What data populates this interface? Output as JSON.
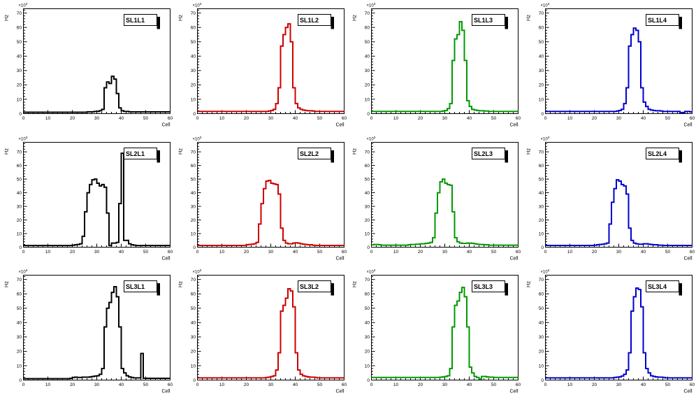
{
  "layout": {
    "rows": 3,
    "cols": 4,
    "background": "#ffffff"
  },
  "chart_data": [
    {
      "type": "bar",
      "style": "step-histogram",
      "title": "SL1L1",
      "color": "#000000",
      "xlabel": "Cell",
      "ylabel": "Hz",
      "exponent": {
        "base": "×10",
        "power": "3"
      },
      "xlim": [
        0,
        60
      ],
      "ylim": [
        0,
        73
      ],
      "xticks": [
        0,
        10,
        20,
        30,
        40,
        50,
        60
      ],
      "yticks": [
        0,
        10,
        20,
        30,
        40,
        50,
        60,
        70
      ],
      "values": [
        1,
        1,
        1,
        1,
        1,
        1,
        1,
        1,
        1,
        1,
        1,
        1,
        1,
        1,
        1,
        1,
        1,
        1,
        1,
        1,
        1,
        1,
        1,
        1,
        1,
        1,
        1.2,
        1.2,
        1.3,
        1.5,
        1.5,
        2,
        3,
        18,
        22,
        21,
        26,
        24,
        14,
        4,
        2,
        1.5,
        1.5,
        1.3,
        1.2,
        1.2,
        1.2,
        1.2,
        1.2,
        1.2,
        1.2,
        1.2,
        1.2,
        1.2,
        1.2,
        1.2,
        1.2,
        1.2,
        1.2,
        1.2
      ]
    },
    {
      "type": "bar",
      "style": "step-histogram",
      "title": "SL1L2",
      "color": "#cc0000",
      "xlabel": "Cell",
      "ylabel": "Hz",
      "exponent": {
        "base": "×10",
        "power": "3"
      },
      "xlim": [
        0,
        60
      ],
      "ylim": [
        0,
        73
      ],
      "xticks": [
        0,
        10,
        20,
        30,
        40,
        50,
        60
      ],
      "yticks": [
        0,
        10,
        20,
        30,
        40,
        50,
        60,
        70
      ],
      "values": [
        1.5,
        1.5,
        1.5,
        1.5,
        1.5,
        1.5,
        1.5,
        1.5,
        1.5,
        1.5,
        1.5,
        1.5,
        1.5,
        1.5,
        1.5,
        1.5,
        1.5,
        1.5,
        1.5,
        1.5,
        1.5,
        1.5,
        1.5,
        1.5,
        1.5,
        1.5,
        1.5,
        1.5,
        1.5,
        1.8,
        2.2,
        3,
        7,
        18,
        47,
        55,
        60,
        62.5,
        50,
        18,
        7,
        4,
        3,
        2.5,
        2.2,
        2,
        2,
        1.8,
        1.5,
        1.5,
        1.5,
        1.5,
        1.5,
        1.5,
        1.5,
        1.5,
        1.5,
        1.5,
        1.5,
        1.5
      ]
    },
    {
      "type": "bar",
      "style": "step-histogram",
      "title": "SL1L3",
      "color": "#009900",
      "xlabel": "Cell",
      "ylabel": "Hz",
      "exponent": {
        "base": "×10",
        "power": "3"
      },
      "xlim": [
        0,
        60
      ],
      "ylim": [
        0,
        73
      ],
      "xticks": [
        0,
        10,
        20,
        30,
        40,
        50,
        60
      ],
      "yticks": [
        0,
        10,
        20,
        30,
        40,
        50,
        60,
        70
      ],
      "values": [
        1.5,
        1.5,
        1.5,
        1.5,
        1.5,
        1.5,
        1.5,
        1.5,
        1.5,
        1.5,
        1.5,
        1.5,
        1.5,
        1.5,
        1.5,
        1.5,
        1.5,
        1.5,
        1.5,
        1.5,
        1.5,
        1.5,
        1.5,
        1.5,
        1.5,
        1.5,
        1.5,
        1.5,
        1.5,
        1.8,
        2.2,
        3.5,
        7,
        37,
        52,
        55,
        64,
        58,
        37,
        9,
        5,
        3,
        2.5,
        2.2,
        2,
        2,
        1.8,
        1.8,
        1.5,
        1.5,
        1.5,
        1.5,
        1.5,
        1.5,
        1.5,
        1.5,
        1.5,
        1.5,
        1.5,
        1.5
      ]
    },
    {
      "type": "bar",
      "style": "step-histogram",
      "title": "SL1L4",
      "color": "#0000cc",
      "xlabel": "Cell",
      "ylabel": "Hz",
      "exponent": {
        "base": "×10",
        "power": "3"
      },
      "xlim": [
        0,
        60
      ],
      "ylim": [
        0,
        73
      ],
      "xticks": [
        0,
        10,
        20,
        30,
        40,
        50,
        60
      ],
      "yticks": [
        0,
        10,
        20,
        30,
        40,
        50,
        60,
        70
      ],
      "values": [
        1.5,
        1.5,
        1.5,
        1.5,
        1.5,
        1.5,
        1.5,
        1.5,
        1.5,
        1.5,
        1.5,
        1.5,
        1.5,
        1.5,
        1.5,
        1.5,
        1.5,
        1.5,
        1.5,
        1.5,
        1.5,
        1.5,
        1.5,
        1.5,
        1.5,
        1.5,
        1.5,
        1.5,
        1.5,
        1.8,
        2.2,
        3,
        7,
        18,
        47,
        55,
        59.5,
        58,
        50,
        18,
        8,
        5,
        3,
        2.5,
        2.2,
        2,
        2,
        1.8,
        1.5,
        1.5,
        1.5,
        1.5,
        1.5,
        1.5,
        1.5,
        0.8,
        0.8,
        1.5,
        1.5,
        1.2
      ]
    },
    {
      "type": "bar",
      "style": "step-histogram",
      "title": "SL2L1",
      "color": "#000000",
      "xlabel": "Cell",
      "ylabel": "Hz",
      "exponent": {
        "base": "×10",
        "power": "3"
      },
      "xlim": [
        0,
        60
      ],
      "ylim": [
        0,
        77
      ],
      "xticks": [
        0,
        10,
        20,
        30,
        40,
        50,
        60
      ],
      "yticks": [
        0,
        10,
        20,
        30,
        40,
        50,
        60,
        70
      ],
      "values": [
        1.2,
        1.2,
        1.2,
        1.2,
        1.2,
        1.2,
        1.2,
        1.2,
        1.2,
        1.2,
        1.2,
        1.2,
        1.2,
        1.2,
        1.2,
        1.2,
        1.2,
        1.2,
        1.2,
        1.2,
        1.5,
        1.8,
        2,
        2.5,
        8,
        26,
        40,
        46,
        49.5,
        50,
        47,
        45,
        46,
        44,
        25,
        1.2,
        3,
        3,
        3.5,
        32,
        69,
        5,
        5,
        2.5,
        1.8,
        1.5,
        1.2,
        1.2,
        1.2,
        1.2,
        1.2,
        1.2,
        1.2,
        1.2,
        1.2,
        1.2,
        1.2,
        1.2,
        1.2,
        1.2
      ]
    },
    {
      "type": "bar",
      "style": "step-histogram",
      "title": "SL2L2",
      "color": "#cc0000",
      "xlabel": "Cell",
      "ylabel": "Hz",
      "exponent": {
        "base": "×10",
        "power": "3"
      },
      "xlim": [
        0,
        60
      ],
      "ylim": [
        0,
        77
      ],
      "xticks": [
        0,
        10,
        20,
        30,
        40,
        50,
        60
      ],
      "yticks": [
        0,
        10,
        20,
        30,
        40,
        50,
        60,
        70
      ],
      "values": [
        1.3,
        1.3,
        1.3,
        1.3,
        1.3,
        1.3,
        1.3,
        1.3,
        1.3,
        1.3,
        1.3,
        1.3,
        1.3,
        1.3,
        1.3,
        1.3,
        1.3,
        1.3,
        1.3,
        1.3,
        1.8,
        2,
        2.2,
        2.5,
        3.5,
        17,
        32,
        43,
        48.5,
        49,
        47,
        46.5,
        46,
        39,
        14,
        5,
        3,
        2.5,
        2.5,
        3,
        3.2,
        3,
        2.5,
        2.2,
        2,
        1.8,
        1.8,
        1.5,
        1.3,
        1.3,
        1.3,
        1.3,
        1.3,
        1.3,
        1.3,
        1.3,
        1.3,
        1.3,
        1.3,
        1.3
      ]
    },
    {
      "type": "bar",
      "style": "step-histogram",
      "title": "SL2L3",
      "color": "#009900",
      "xlabel": "Cell",
      "ylabel": "Hz",
      "exponent": {
        "base": "×10",
        "power": "3"
      },
      "xlim": [
        0,
        60
      ],
      "ylim": [
        0,
        77
      ],
      "xticks": [
        0,
        10,
        20,
        30,
        40,
        50,
        60
      ],
      "yticks": [
        0,
        10,
        20,
        30,
        40,
        50,
        60,
        70
      ],
      "values": [
        1.8,
        2,
        2,
        1.8,
        1.5,
        1.5,
        1.5,
        1.5,
        1.5,
        1.5,
        1.5,
        1.5,
        1.5,
        1.5,
        1.5,
        1.8,
        2,
        2,
        2.2,
        2.2,
        2.5,
        2.5,
        2.8,
        3,
        3.5,
        7,
        25,
        40,
        48,
        50,
        47,
        46,
        45.5,
        26,
        7,
        4,
        3,
        2.8,
        2.8,
        3,
        3,
        2.8,
        2.5,
        2.2,
        2,
        2,
        1.8,
        1.8,
        1.5,
        1.5,
        1.5,
        1.5,
        1.5,
        1.5,
        1.5,
        1.5,
        1.5,
        1.5,
        1.5,
        1.5
      ]
    },
    {
      "type": "bar",
      "style": "step-histogram",
      "title": "SL2L4",
      "color": "#0000cc",
      "xlabel": "Cell",
      "ylabel": "Hz",
      "exponent": {
        "base": "×10",
        "power": "3"
      },
      "xlim": [
        0,
        60
      ],
      "ylim": [
        0,
        77
      ],
      "xticks": [
        0,
        10,
        20,
        30,
        40,
        50,
        60
      ],
      "yticks": [
        0,
        10,
        20,
        30,
        40,
        50,
        60,
        70
      ],
      "values": [
        1.3,
        1.3,
        1.3,
        1.3,
        1.3,
        1.3,
        1.3,
        1.3,
        1.3,
        1.3,
        1.3,
        1.3,
        1.3,
        1.3,
        1.3,
        1.3,
        1.3,
        1.3,
        1.3,
        1.3,
        1.5,
        1.8,
        2,
        2.2,
        2.5,
        3,
        17,
        33,
        43,
        49.5,
        48.5,
        46,
        45,
        39,
        14,
        5,
        3,
        2.5,
        2.2,
        2.2,
        2.5,
        2.5,
        2.2,
        2,
        1.8,
        1.8,
        1.5,
        1.5,
        1.3,
        1.3,
        1.3,
        1.3,
        1.3,
        1.3,
        1.3,
        1.3,
        1.3,
        1.3,
        1.3,
        1.3
      ]
    },
    {
      "type": "bar",
      "style": "step-histogram",
      "title": "SL3L1",
      "color": "#000000",
      "xlabel": "Cell",
      "ylabel": "Hz",
      "exponent": {
        "base": "×10",
        "power": "3"
      },
      "xlim": [
        0,
        60
      ],
      "ylim": [
        0,
        73
      ],
      "xticks": [
        0,
        10,
        20,
        30,
        40,
        50,
        60
      ],
      "yticks": [
        0,
        10,
        20,
        30,
        40,
        50,
        60,
        70
      ],
      "values": [
        1,
        1,
        1,
        1,
        1,
        1,
        1,
        1,
        1,
        1,
        1,
        1,
        1,
        1,
        1,
        1,
        1,
        1,
        1,
        1.2,
        1.8,
        2,
        1.8,
        1.8,
        2,
        2,
        2,
        2.2,
        2.5,
        2.8,
        3,
        4,
        8,
        37,
        50,
        54,
        61,
        65,
        58,
        37,
        8,
        5,
        3,
        2.2,
        1.8,
        1.5,
        1.5,
        1.5,
        18.5,
        1.3,
        1.2,
        1.2,
        1.2,
        1.2,
        1.2,
        1.2,
        1.2,
        1.2,
        1.2,
        1.2
      ]
    },
    {
      "type": "bar",
      "style": "step-histogram",
      "title": "SL3L2",
      "color": "#cc0000",
      "xlabel": "Cell",
      "ylabel": "Hz",
      "exponent": {
        "base": "×10",
        "power": "3"
      },
      "xlim": [
        0,
        60
      ],
      "ylim": [
        0,
        73
      ],
      "xticks": [
        0,
        10,
        20,
        30,
        40,
        50,
        60
      ],
      "yticks": [
        0,
        10,
        20,
        30,
        40,
        50,
        60,
        70
      ],
      "values": [
        1.5,
        1.5,
        1.5,
        1.5,
        1.5,
        1.5,
        1.5,
        1.5,
        1.5,
        1.5,
        1.5,
        1.5,
        1.5,
        1.5,
        1.5,
        1.5,
        1.5,
        1.5,
        1.5,
        1.5,
        1.5,
        1.5,
        1.5,
        1.5,
        1.5,
        1.5,
        1.5,
        1.5,
        1.8,
        2,
        2.5,
        3,
        7,
        19,
        48,
        52,
        57,
        63.5,
        62,
        51,
        19,
        7,
        4,
        3,
        2.5,
        2.2,
        2,
        2,
        1.8,
        1.5,
        1.5,
        1.5,
        1.5,
        1.5,
        1.5,
        1.5,
        1.5,
        1.5,
        1.5,
        1.5
      ]
    },
    {
      "type": "bar",
      "style": "step-histogram",
      "title": "SL3L3",
      "color": "#009900",
      "xlabel": "Cell",
      "ylabel": "Hz",
      "exponent": {
        "base": "×10",
        "power": "3"
      },
      "xlim": [
        0,
        60
      ],
      "ylim": [
        0,
        73
      ],
      "xticks": [
        0,
        10,
        20,
        30,
        40,
        50,
        60
      ],
      "yticks": [
        0,
        10,
        20,
        30,
        40,
        50,
        60,
        70
      ],
      "values": [
        1.8,
        1.8,
        1.8,
        1.8,
        1.8,
        1.8,
        1.8,
        1.8,
        1.8,
        1.8,
        1.8,
        1.8,
        1.8,
        1.8,
        1.8,
        1.8,
        1.8,
        1.8,
        1.8,
        1.8,
        1.8,
        1.8,
        1.8,
        1.8,
        1.8,
        1.8,
        1.8,
        1.8,
        2,
        2.2,
        2.5,
        3,
        8,
        37,
        52,
        55,
        61,
        64.5,
        58,
        37,
        9,
        5,
        2.5,
        1.8,
        0.8,
        2.5,
        2.5,
        2.2,
        2,
        2,
        1.8,
        1.8,
        1.8,
        1.8,
        1.8,
        1.8,
        1.8,
        1.8,
        1.8,
        1.8
      ]
    },
    {
      "type": "bar",
      "style": "step-histogram",
      "title": "SL3L4",
      "color": "#0000cc",
      "xlabel": "Cell",
      "ylabel": "Hz",
      "exponent": {
        "base": "×10",
        "power": "3"
      },
      "xlim": [
        0,
        60
      ],
      "ylim": [
        0,
        73
      ],
      "xticks": [
        0,
        10,
        20,
        30,
        40,
        50,
        60
      ],
      "yticks": [
        0,
        10,
        20,
        30,
        40,
        50,
        60,
        70
      ],
      "values": [
        1.5,
        1.5,
        1.5,
        1.5,
        1.5,
        1.5,
        1.5,
        1.5,
        1.5,
        1.5,
        1.5,
        1.5,
        1.5,
        1.5,
        1.5,
        1.5,
        1.5,
        1.5,
        1.5,
        1.5,
        1.5,
        1.5,
        1.5,
        1.5,
        1.5,
        1.5,
        1.5,
        1.5,
        1.8,
        2,
        2.2,
        2.8,
        4,
        7,
        19,
        48,
        58,
        64,
        63,
        51,
        19,
        8,
        5,
        3,
        2.5,
        2.2,
        2,
        2,
        1.8,
        1.5,
        1.5,
        1.5,
        1.5,
        1.5,
        1.5,
        1.5,
        1.5,
        1.5,
        1.5,
        1.5
      ]
    }
  ]
}
